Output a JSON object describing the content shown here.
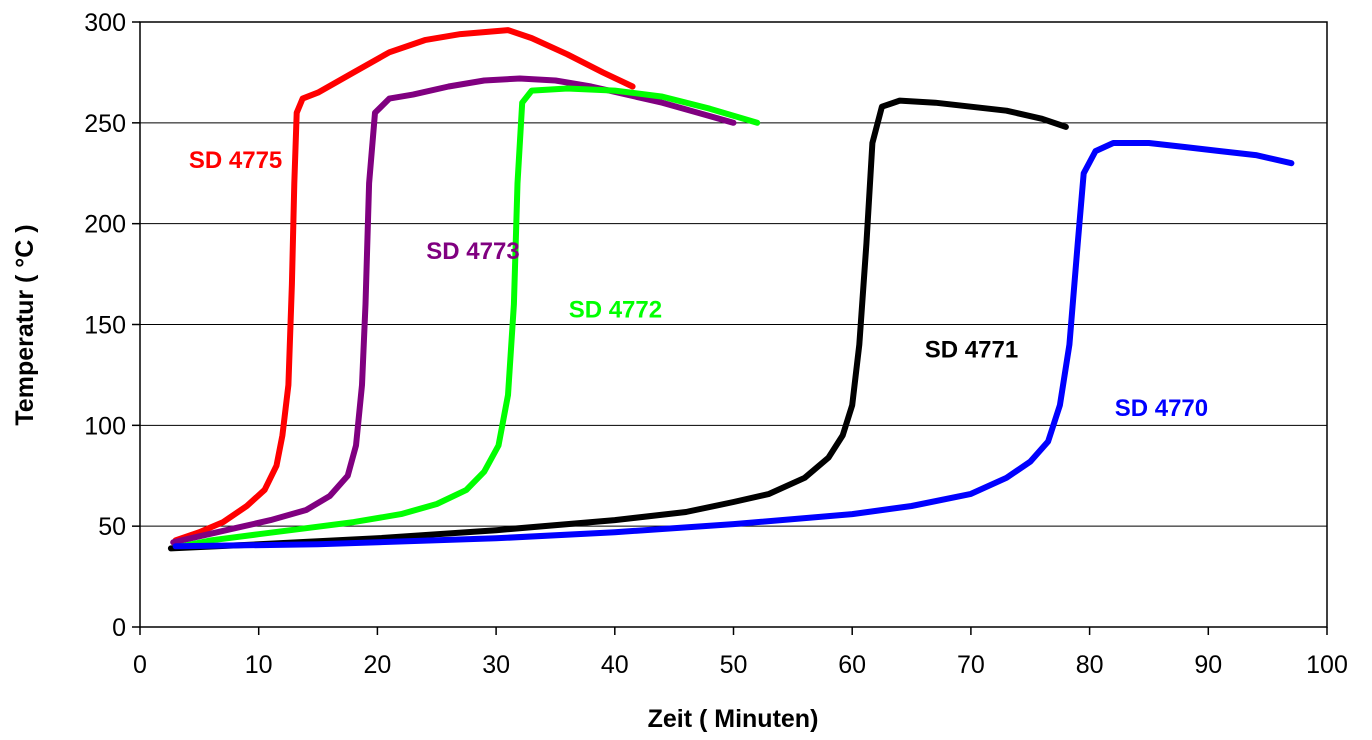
{
  "chart_data": {
    "type": "line",
    "title": "",
    "xlabel": "Zeit ( Minuten)",
    "ylabel": "Temperatur ( °C )",
    "xlim": [
      0,
      100
    ],
    "ylim": [
      0,
      300
    ],
    "x_ticks": [
      "0",
      "10",
      "20",
      "30",
      "40",
      "50",
      "60",
      "70",
      "80",
      "90",
      "100"
    ],
    "y_ticks": [
      "0",
      "50",
      "100",
      "150",
      "200",
      "250",
      "300"
    ],
    "grid": "horizontal",
    "legend": "none",
    "series": [
      {
        "name": "SD 4775",
        "color": "#ff0000",
        "points": [
          [
            3,
            43
          ],
          [
            5,
            47
          ],
          [
            7,
            52
          ],
          [
            9,
            60
          ],
          [
            10.5,
            68
          ],
          [
            11.5,
            80
          ],
          [
            12,
            95
          ],
          [
            12.5,
            120
          ],
          [
            12.8,
            170
          ],
          [
            13,
            220
          ],
          [
            13.2,
            255
          ],
          [
            13.7,
            262
          ],
          [
            15,
            265
          ],
          [
            18,
            275
          ],
          [
            21,
            285
          ],
          [
            24,
            291
          ],
          [
            27,
            294
          ],
          [
            29,
            295
          ],
          [
            31,
            296
          ],
          [
            33,
            292
          ],
          [
            36,
            284
          ],
          [
            39,
            275
          ],
          [
            41.5,
            268
          ]
        ]
      },
      {
        "name": "SD 4773",
        "color": "#800080",
        "points": [
          [
            2.8,
            42
          ],
          [
            5,
            45
          ],
          [
            8,
            49
          ],
          [
            11,
            53
          ],
          [
            14,
            58
          ],
          [
            16,
            65
          ],
          [
            17.5,
            75
          ],
          [
            18.2,
            90
          ],
          [
            18.7,
            120
          ],
          [
            19,
            160
          ],
          [
            19.3,
            220
          ],
          [
            19.8,
            255
          ],
          [
            21,
            262
          ],
          [
            23,
            264
          ],
          [
            26,
            268
          ],
          [
            29,
            271
          ],
          [
            32,
            272
          ],
          [
            35,
            271
          ],
          [
            38,
            268
          ],
          [
            41,
            264
          ],
          [
            44,
            260
          ],
          [
            47,
            255
          ],
          [
            50,
            250
          ]
        ]
      },
      {
        "name": "SD 4772",
        "color": "#00ff00",
        "points": [
          [
            3.5,
            40
          ],
          [
            6,
            43
          ],
          [
            10,
            46
          ],
          [
            14,
            49
          ],
          [
            18,
            52
          ],
          [
            22,
            56
          ],
          [
            25,
            61
          ],
          [
            27.5,
            68
          ],
          [
            29,
            77
          ],
          [
            30.2,
            90
          ],
          [
            31,
            115
          ],
          [
            31.5,
            160
          ],
          [
            31.8,
            220
          ],
          [
            32.2,
            260
          ],
          [
            33,
            266
          ],
          [
            36,
            267
          ],
          [
            40,
            266
          ],
          [
            44,
            263
          ],
          [
            48,
            257
          ],
          [
            52,
            250
          ]
        ]
      },
      {
        "name": "SD 4771",
        "color": "#000000",
        "points": [
          [
            2.6,
            39
          ],
          [
            10,
            41
          ],
          [
            20,
            44
          ],
          [
            30,
            48
          ],
          [
            40,
            53
          ],
          [
            46,
            57
          ],
          [
            50,
            62
          ],
          [
            53,
            66
          ],
          [
            56,
            74
          ],
          [
            58,
            84
          ],
          [
            59.2,
            95
          ],
          [
            60,
            110
          ],
          [
            60.6,
            140
          ],
          [
            61.2,
            190
          ],
          [
            61.7,
            240
          ],
          [
            62.5,
            258
          ],
          [
            64,
            261
          ],
          [
            67,
            260
          ],
          [
            70,
            258
          ],
          [
            73,
            256
          ],
          [
            76,
            252
          ],
          [
            78,
            248
          ]
        ]
      },
      {
        "name": "SD 4770",
        "color": "#0000ff",
        "points": [
          [
            3,
            40
          ],
          [
            15,
            41
          ],
          [
            30,
            44
          ],
          [
            40,
            47
          ],
          [
            50,
            51
          ],
          [
            60,
            56
          ],
          [
            65,
            60
          ],
          [
            70,
            66
          ],
          [
            73,
            74
          ],
          [
            75,
            82
          ],
          [
            76.5,
            92
          ],
          [
            77.5,
            110
          ],
          [
            78.3,
            140
          ],
          [
            79,
            190
          ],
          [
            79.5,
            225
          ],
          [
            80.5,
            236
          ],
          [
            82,
            240
          ],
          [
            85,
            240
          ],
          [
            88,
            238
          ],
          [
            91,
            236
          ],
          [
            94,
            234
          ],
          [
            97,
            230
          ]
        ]
      }
    ],
    "annotations": [
      {
        "text": "SD 4775",
        "x": 1,
        "y": 232,
        "color": "#ff0000"
      },
      {
        "text": "SD 4773",
        "x": 21,
        "y": 187,
        "color": "#800080"
      },
      {
        "text": "SD 4772",
        "x": 33,
        "y": 158,
        "color": "#00ff00"
      },
      {
        "text": "SD 4771",
        "x": 63,
        "y": 138,
        "color": "#000000"
      },
      {
        "text": "SD 4770",
        "x": 79,
        "y": 109,
        "color": "#0000ff"
      }
    ]
  }
}
